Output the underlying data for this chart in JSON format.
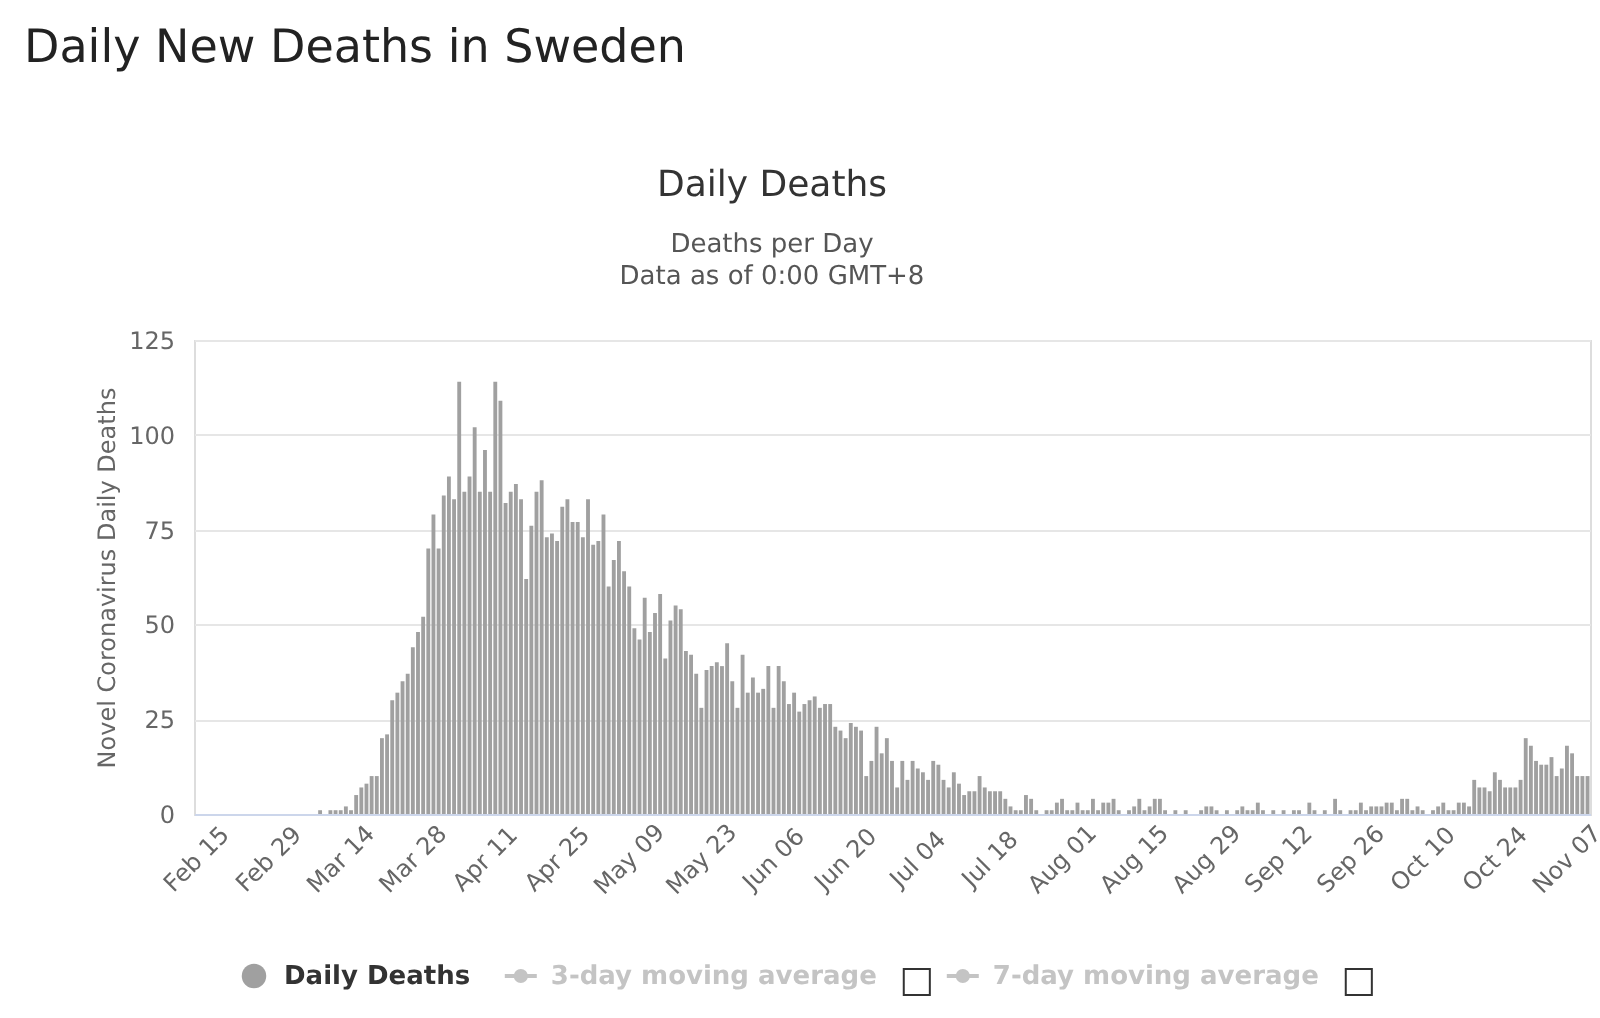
{
  "chart_data": {
    "type": "bar",
    "title": "Daily Deaths",
    "subtitle": "Deaths per Day\nData as of 0:00 GMT+8",
    "annotations": [
      "Daily New Deaths in Sweden"
    ],
    "ylabel": "Novel Coronavirus Daily Deaths",
    "ylim": [
      0,
      125
    ],
    "yticks": [
      0,
      25,
      50,
      75,
      100,
      125
    ],
    "grid": "y",
    "legend": "bottom",
    "categories": [
      "Feb 15",
      null,
      null,
      null,
      null,
      null,
      null,
      null,
      null,
      null,
      null,
      null,
      null,
      null,
      "Feb 29",
      null,
      null,
      null,
      null,
      null,
      null,
      null,
      null,
      null,
      null,
      null,
      null,
      null,
      "Mar 14",
      null,
      null,
      null,
      null,
      null,
      null,
      null,
      null,
      null,
      null,
      null,
      null,
      null,
      "Mar 28",
      null,
      null,
      null,
      null,
      null,
      null,
      null,
      null,
      null,
      null,
      null,
      null,
      null,
      "Apr 11",
      null,
      null,
      null,
      null,
      null,
      null,
      null,
      null,
      null,
      null,
      null,
      null,
      null,
      "Apr 25",
      null,
      null,
      null,
      null,
      null,
      null,
      null,
      null,
      null,
      null,
      null,
      null,
      null,
      "May 09",
      null,
      null,
      null,
      null,
      null,
      null,
      null,
      null,
      null,
      null,
      null,
      null,
      null,
      "May 23",
      null,
      null,
      null,
      null,
      null,
      null,
      null,
      null,
      null,
      null,
      null,
      null,
      null,
      "Jun 06",
      null,
      null,
      null,
      null,
      null,
      null,
      null,
      null,
      null,
      null,
      null,
      null,
      null,
      "Jun 20",
      null,
      null,
      null,
      null,
      null,
      null,
      null,
      null,
      null,
      null,
      null,
      null,
      null,
      "Jul 04",
      null,
      null,
      null,
      null,
      null,
      null,
      null,
      null,
      null,
      null,
      null,
      null,
      null,
      "Jul 18",
      null,
      null,
      null,
      null,
      null,
      null,
      null,
      null,
      null,
      null,
      null,
      null,
      null,
      "Aug 01",
      null,
      null,
      null,
      null,
      null,
      null,
      null,
      null,
      null,
      null,
      null,
      null,
      null,
      "Aug 15",
      null,
      null,
      null,
      null,
      null,
      null,
      null,
      null,
      null,
      null,
      null,
      null,
      null,
      "Aug 29",
      null,
      null,
      null,
      null,
      null,
      null,
      null,
      null,
      null,
      null,
      null,
      null,
      null,
      "Sep 12",
      null,
      null,
      null,
      null,
      null,
      null,
      null,
      null,
      null,
      null,
      null,
      null,
      null,
      "Sep 26",
      null,
      null,
      null,
      null,
      null,
      null,
      null,
      null,
      null,
      null,
      null,
      null,
      null,
      "Oct 10",
      null,
      null,
      null,
      null,
      null,
      null,
      null,
      null,
      null,
      null,
      null,
      null,
      null,
      "Oct 24",
      null,
      null,
      null,
      null,
      null,
      null,
      null,
      null,
      null,
      null,
      null,
      null,
      null,
      "Nov 07",
      null,
      null,
      null,
      null
    ],
    "series": [
      {
        "name": "Daily Deaths",
        "color": "#a0a0a0",
        "values": [
          0,
          0,
          0,
          0,
          0,
          0,
          0,
          0,
          0,
          0,
          0,
          0,
          0,
          0,
          0,
          0,
          0,
          0,
          0,
          0,
          0,
          0,
          0,
          0,
          1,
          0,
          1,
          1,
          1,
          2,
          1,
          5,
          7,
          8,
          10,
          10,
          20,
          21,
          30,
          32,
          35,
          37,
          44,
          48,
          52,
          70,
          79,
          70,
          84,
          89,
          83,
          114,
          85,
          89,
          102,
          85,
          96,
          85,
          114,
          109,
          82,
          85,
          87,
          83,
          62,
          76,
          85,
          88,
          73,
          74,
          72,
          81,
          83,
          77,
          77,
          73,
          83,
          71,
          72,
          79,
          60,
          67,
          72,
          64,
          60,
          49,
          46,
          57,
          48,
          53,
          58,
          41,
          51,
          55,
          54,
          43,
          42,
          37,
          28,
          38,
          39,
          40,
          39,
          45,
          35,
          28,
          42,
          32,
          36,
          32,
          33,
          39,
          28,
          39,
          35,
          29,
          32,
          27,
          29,
          30,
          31,
          28,
          29,
          29,
          23,
          22,
          20,
          24,
          23,
          22,
          10,
          14,
          23,
          16,
          20,
          14,
          7,
          14,
          9,
          14,
          12,
          11,
          9,
          14,
          13,
          9,
          7,
          11,
          8,
          5,
          6,
          6,
          10,
          7,
          6,
          6,
          6,
          4,
          2,
          1,
          1,
          5,
          4,
          1,
          0,
          1,
          1,
          3,
          4,
          1,
          1,
          3,
          1,
          1,
          4,
          1,
          3,
          3,
          4,
          1,
          0,
          1,
          2,
          4,
          1,
          2,
          4,
          4,
          1,
          0,
          1,
          0,
          1,
          0,
          0,
          1,
          2,
          2,
          1,
          0,
          1,
          0,
          1,
          2,
          1,
          1,
          3,
          1,
          0,
          1,
          0,
          1,
          0,
          1,
          1,
          0,
          3,
          1,
          0,
          1,
          0,
          4,
          1,
          0,
          1,
          1,
          3,
          1,
          2,
          2,
          2,
          3,
          3,
          1,
          4,
          4,
          1,
          2,
          1,
          0,
          1,
          2,
          3,
          1,
          1,
          3,
          3,
          2,
          9,
          7,
          7,
          6,
          11,
          9,
          7,
          7,
          7,
          9,
          20,
          18,
          14,
          13,
          13,
          15,
          10,
          12,
          18,
          16,
          10,
          10,
          10
        ]
      },
      {
        "name": "3-day moving average",
        "color": "#c4c4c4",
        "values": [
          null,
          null,
          null,
          null,
          null,
          null,
          null,
          null,
          null,
          null,
          null,
          null,
          null,
          null,
          null,
          null,
          null,
          null,
          null,
          null,
          null,
          null,
          null,
          null,
          null,
          null,
          null,
          null,
          null,
          null,
          null,
          null,
          null,
          null,
          null,
          null,
          null,
          null,
          null,
          null,
          null,
          null,
          null,
          null,
          null,
          null,
          null,
          null,
          null,
          null,
          null,
          null,
          null,
          null,
          null,
          null,
          null,
          null,
          null,
          null,
          null,
          null,
          null,
          null,
          null,
          null,
          null,
          null,
          null,
          null,
          null,
          null,
          null,
          null,
          null,
          null,
          null,
          null,
          null,
          null,
          null,
          null,
          null,
          null,
          null,
          null,
          null,
          null,
          null,
          null,
          null,
          null,
          null,
          null,
          null,
          null,
          null,
          null,
          null,
          null,
          null,
          null,
          null,
          null,
          null,
          null,
          null,
          null,
          null,
          null,
          null,
          null,
          null,
          null,
          null,
          null,
          null,
          null,
          null,
          null,
          null,
          null,
          null,
          null,
          null,
          null,
          null,
          null,
          null,
          null,
          null,
          null,
          null,
          null,
          null,
          null,
          null,
          null,
          null,
          null,
          null,
          null,
          null,
          null,
          null,
          null,
          null,
          null,
          null,
          null,
          null,
          null,
          null,
          null,
          null,
          null,
          null,
          null,
          null,
          null,
          null,
          null,
          null,
          null,
          null,
          null,
          null,
          null,
          null,
          null,
          null,
          null,
          null,
          null,
          null,
          null,
          null,
          null,
          null,
          null,
          null,
          null,
          null,
          null,
          null,
          null,
          null,
          null,
          null,
          null,
          null,
          null,
          null,
          null,
          null,
          null,
          null,
          null,
          null,
          null,
          null,
          null,
          null,
          null,
          null,
          null,
          null,
          null,
          null,
          null,
          null,
          null,
          null,
          null,
          null,
          null,
          null,
          null,
          null,
          null,
          null,
          null,
          null,
          null,
          null,
          null,
          null,
          null,
          null,
          null,
          null,
          null,
          null,
          null,
          null,
          null,
          null,
          null,
          null,
          null,
          null,
          null,
          null,
          null,
          null,
          null,
          null,
          null,
          null,
          null,
          null,
          null,
          null,
          null,
          null,
          null,
          null,
          null,
          null,
          null,
          null,
          null,
          null,
          null,
          null,
          null,
          null,
          null,
          null,
          null,
          null
        ]
      },
      {
        "name": "7-day moving average",
        "color": "#c4c4c4",
        "values": [
          null,
          null,
          null,
          null,
          null,
          null,
          null,
          null,
          null,
          null,
          null,
          null,
          null,
          null,
          null,
          null,
          null,
          null,
          null,
          null,
          null,
          null,
          null,
          null,
          null,
          null,
          null,
          null,
          null,
          null,
          null,
          null,
          null,
          null,
          null,
          null,
          null,
          null,
          null,
          null,
          null,
          null,
          null,
          null,
          null,
          null,
          null,
          null,
          null,
          null,
          null,
          null,
          null,
          null,
          null,
          null,
          null,
          null,
          null,
          null,
          null,
          null,
          null,
          null,
          null,
          null,
          null,
          null,
          null,
          null,
          null,
          null,
          null,
          null,
          null,
          null,
          null,
          null,
          null,
          null,
          null,
          null,
          null,
          null,
          null,
          null,
          null,
          null,
          null,
          null,
          null,
          null,
          null,
          null,
          null,
          null,
          null,
          null,
          null,
          null,
          null,
          null,
          null,
          null,
          null,
          null,
          null,
          null,
          null,
          null,
          null,
          null,
          null,
          null,
          null,
          null,
          null,
          null,
          null,
          null,
          null,
          null,
          null,
          null,
          null,
          null,
          null,
          null,
          null,
          null,
          null,
          null,
          null,
          null,
          null,
          null,
          null,
          null,
          null,
          null,
          null,
          null,
          null,
          null,
          null,
          null,
          null,
          null,
          null,
          null,
          null,
          null,
          null,
          null,
          null,
          null,
          null,
          null,
          null,
          null,
          null,
          null,
          null,
          null,
          null,
          null,
          null,
          null,
          null,
          null,
          null,
          null,
          null,
          null,
          null,
          null,
          null,
          null,
          null,
          null,
          null,
          null,
          null,
          null,
          null,
          null,
          null,
          null,
          null,
          null,
          null,
          null,
          null,
          null,
          null,
          null,
          null,
          null,
          null,
          null,
          null,
          null,
          null,
          null,
          null,
          null,
          null,
          null,
          null,
          null,
          null,
          null,
          null,
          null,
          null,
          null,
          null,
          null,
          null,
          null,
          null,
          null,
          null,
          null,
          null,
          null,
          null,
          null,
          null,
          null,
          null,
          null,
          null,
          null,
          null,
          null,
          null,
          null,
          null,
          null,
          null,
          null,
          null,
          null,
          null,
          null,
          null,
          null,
          null,
          null,
          null,
          null,
          null,
          null,
          null,
          null,
          null,
          null,
          null,
          null,
          null,
          null,
          null,
          null,
          null,
          null,
          null,
          null,
          null,
          null,
          null
        ]
      }
    ]
  }
}
